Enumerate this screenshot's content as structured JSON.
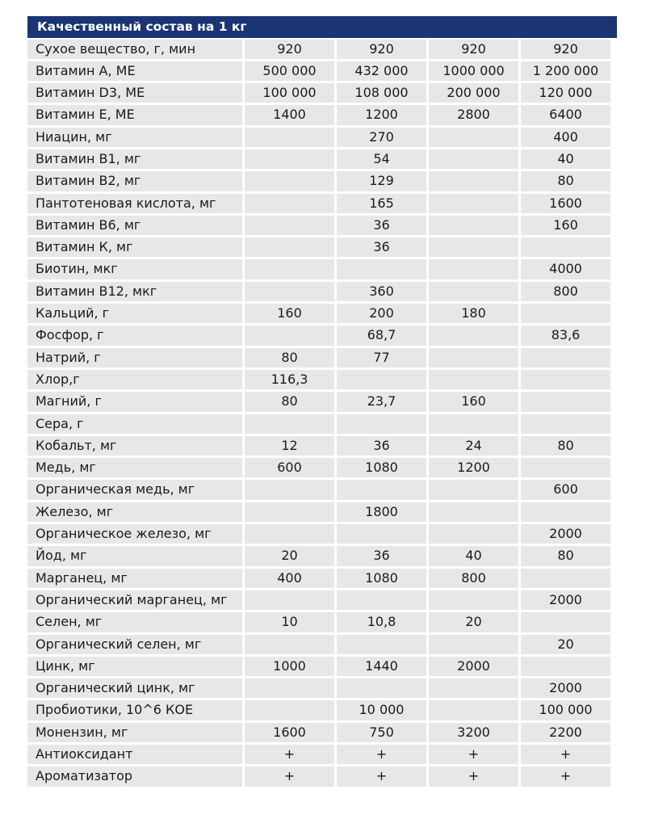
{
  "title": "Качественный состав на 1 кг",
  "rows": [
    {
      "label": "Сухое вещество, г, мин",
      "values": [
        "920",
        "920",
        "920",
        "920"
      ]
    },
    {
      "label": "Витамин А, МЕ",
      "values": [
        "500 000",
        "432 000",
        "1000 000",
        "1 200 000"
      ]
    },
    {
      "label": "Витамин D3, МЕ",
      "values": [
        "100 000",
        "108 000",
        "200 000",
        "120 000"
      ]
    },
    {
      "label": "Витамин Е, МЕ",
      "values": [
        "1400",
        "1200",
        "2800",
        "6400"
      ]
    },
    {
      "label": "Ниацин, мг",
      "values": [
        "",
        "270",
        "",
        "400"
      ]
    },
    {
      "label": "Витамин В1, мг",
      "values": [
        "",
        "54",
        "",
        "40"
      ]
    },
    {
      "label": "Витамин В2, мг",
      "values": [
        "",
        "129",
        "",
        "80"
      ]
    },
    {
      "label": "Пантотеновая кислота, мг",
      "values": [
        "",
        "165",
        "",
        "1600"
      ]
    },
    {
      "label": "Витамин В6, мг",
      "values": [
        "",
        "36",
        "",
        "160"
      ]
    },
    {
      "label": "Витамин К, мг",
      "values": [
        "",
        "36",
        "",
        ""
      ]
    },
    {
      "label": "Биотин, мкг",
      "values": [
        "",
        "",
        "",
        "4000"
      ]
    },
    {
      "label": "Витамин В12, мкг",
      "values": [
        "",
        "360",
        "",
        "800"
      ]
    },
    {
      "label": "Кальций, г",
      "values": [
        "160",
        "200",
        "180",
        ""
      ]
    },
    {
      "label": "Фосфор, г",
      "values": [
        "",
        "68,7",
        "",
        "83,6"
      ]
    },
    {
      "label": "Натрий, г",
      "values": [
        "80",
        "77",
        "",
        ""
      ]
    },
    {
      "label": "Хлор,г",
      "values": [
        "116,3",
        "",
        "",
        ""
      ]
    },
    {
      "label": "Магний, г",
      "values": [
        "80",
        "23,7",
        "160",
        ""
      ]
    },
    {
      "label": "Сера, г",
      "values": [
        "",
        "",
        "",
        ""
      ]
    },
    {
      "label": "Кобальт, мг",
      "values": [
        "12",
        "36",
        "24",
        "80"
      ]
    },
    {
      "label": "Медь, мг",
      "values": [
        "600",
        "1080",
        "1200",
        ""
      ]
    },
    {
      "label": "Органическая медь, мг",
      "values": [
        "",
        "",
        "",
        "600"
      ]
    },
    {
      "label": "Железо, мг",
      "values": [
        "",
        "1800",
        "",
        ""
      ]
    },
    {
      "label": "Органическое железо, мг",
      "values": [
        "",
        "",
        "",
        "2000"
      ]
    },
    {
      "label": "Йод, мг",
      "values": [
        "20",
        "36",
        "40",
        "80"
      ]
    },
    {
      "label": "Марганец, мг",
      "values": [
        "400",
        "1080",
        "800",
        ""
      ]
    },
    {
      "label": "Органический марганец, мг",
      "values": [
        "",
        "",
        "",
        "2000"
      ]
    },
    {
      "label": "Селен, мг",
      "values": [
        "10",
        "10,8",
        "20",
        ""
      ]
    },
    {
      "label": "Органический селен, мг",
      "values": [
        "",
        "",
        "",
        "20"
      ]
    },
    {
      "label": "Цинк, мг",
      "values": [
        "1000",
        "1440",
        "2000",
        ""
      ]
    },
    {
      "label": "Органический цинк, мг",
      "values": [
        "",
        "",
        "",
        "2000"
      ]
    },
    {
      "label": "Пробиотики, 10^6 КОЕ",
      "values": [
        "",
        "10 000",
        "",
        "100 000"
      ]
    },
    {
      "label": "Монензин, мг",
      "values": [
        "1600",
        "750",
        "3200",
        "2200"
      ]
    },
    {
      "label": "Антиоксидант",
      "values": [
        "+",
        "+",
        "+",
        "+"
      ]
    },
    {
      "label": "Ароматизатор",
      "values": [
        "+",
        "+",
        "+",
        "+"
      ]
    }
  ],
  "colors": {
    "header": "#1b3473",
    "cell": "#e6e7e8"
  }
}
